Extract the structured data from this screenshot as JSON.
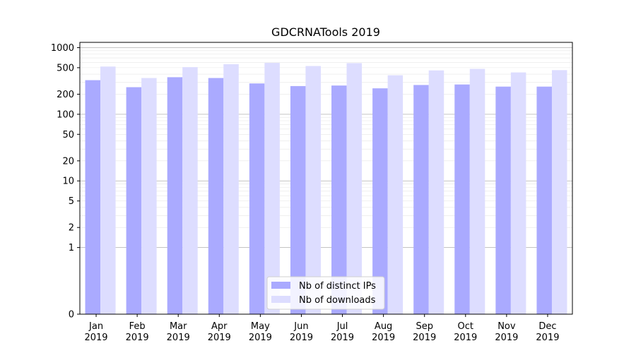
{
  "chart_data": {
    "type": "bar",
    "title": "GDCRNATools 2019",
    "yscale": "symlog",
    "ylim": [
      0,
      1200
    ],
    "yticks": [
      {
        "value": 0,
        "label": "0"
      },
      {
        "value": 1,
        "label": "1"
      },
      {
        "value": 2,
        "label": "2"
      },
      {
        "value": 5,
        "label": "5"
      },
      {
        "value": 10,
        "label": "10"
      },
      {
        "value": 20,
        "label": "20"
      },
      {
        "value": 50,
        "label": "50"
      },
      {
        "value": 100,
        "label": "100"
      },
      {
        "value": 200,
        "label": "200"
      },
      {
        "value": 500,
        "label": "500"
      },
      {
        "value": 1000,
        "label": "1000"
      }
    ],
    "categories": [
      [
        "Jan",
        "2019"
      ],
      [
        "Feb",
        "2019"
      ],
      [
        "Mar",
        "2019"
      ],
      [
        "Apr",
        "2019"
      ],
      [
        "May",
        "2019"
      ],
      [
        "Jun",
        "2019"
      ],
      [
        "Jul",
        "2019"
      ],
      [
        "Aug",
        "2019"
      ],
      [
        "Sep",
        "2019"
      ],
      [
        "Oct",
        "2019"
      ],
      [
        "Nov",
        "2019"
      ],
      [
        "Dec",
        "2019"
      ]
    ],
    "series": [
      {
        "name": "Nb of distinct IPs",
        "color": "#aaaaff",
        "values": [
          325,
          255,
          360,
          350,
          290,
          265,
          270,
          245,
          275,
          280,
          260,
          260
        ]
      },
      {
        "name": "Nb of downloads",
        "color": "#ddddff",
        "values": [
          520,
          350,
          510,
          565,
          590,
          530,
          585,
          385,
          455,
          480,
          425,
          460
        ]
      }
    ],
    "grid": true,
    "legend_position": "lower-center"
  }
}
